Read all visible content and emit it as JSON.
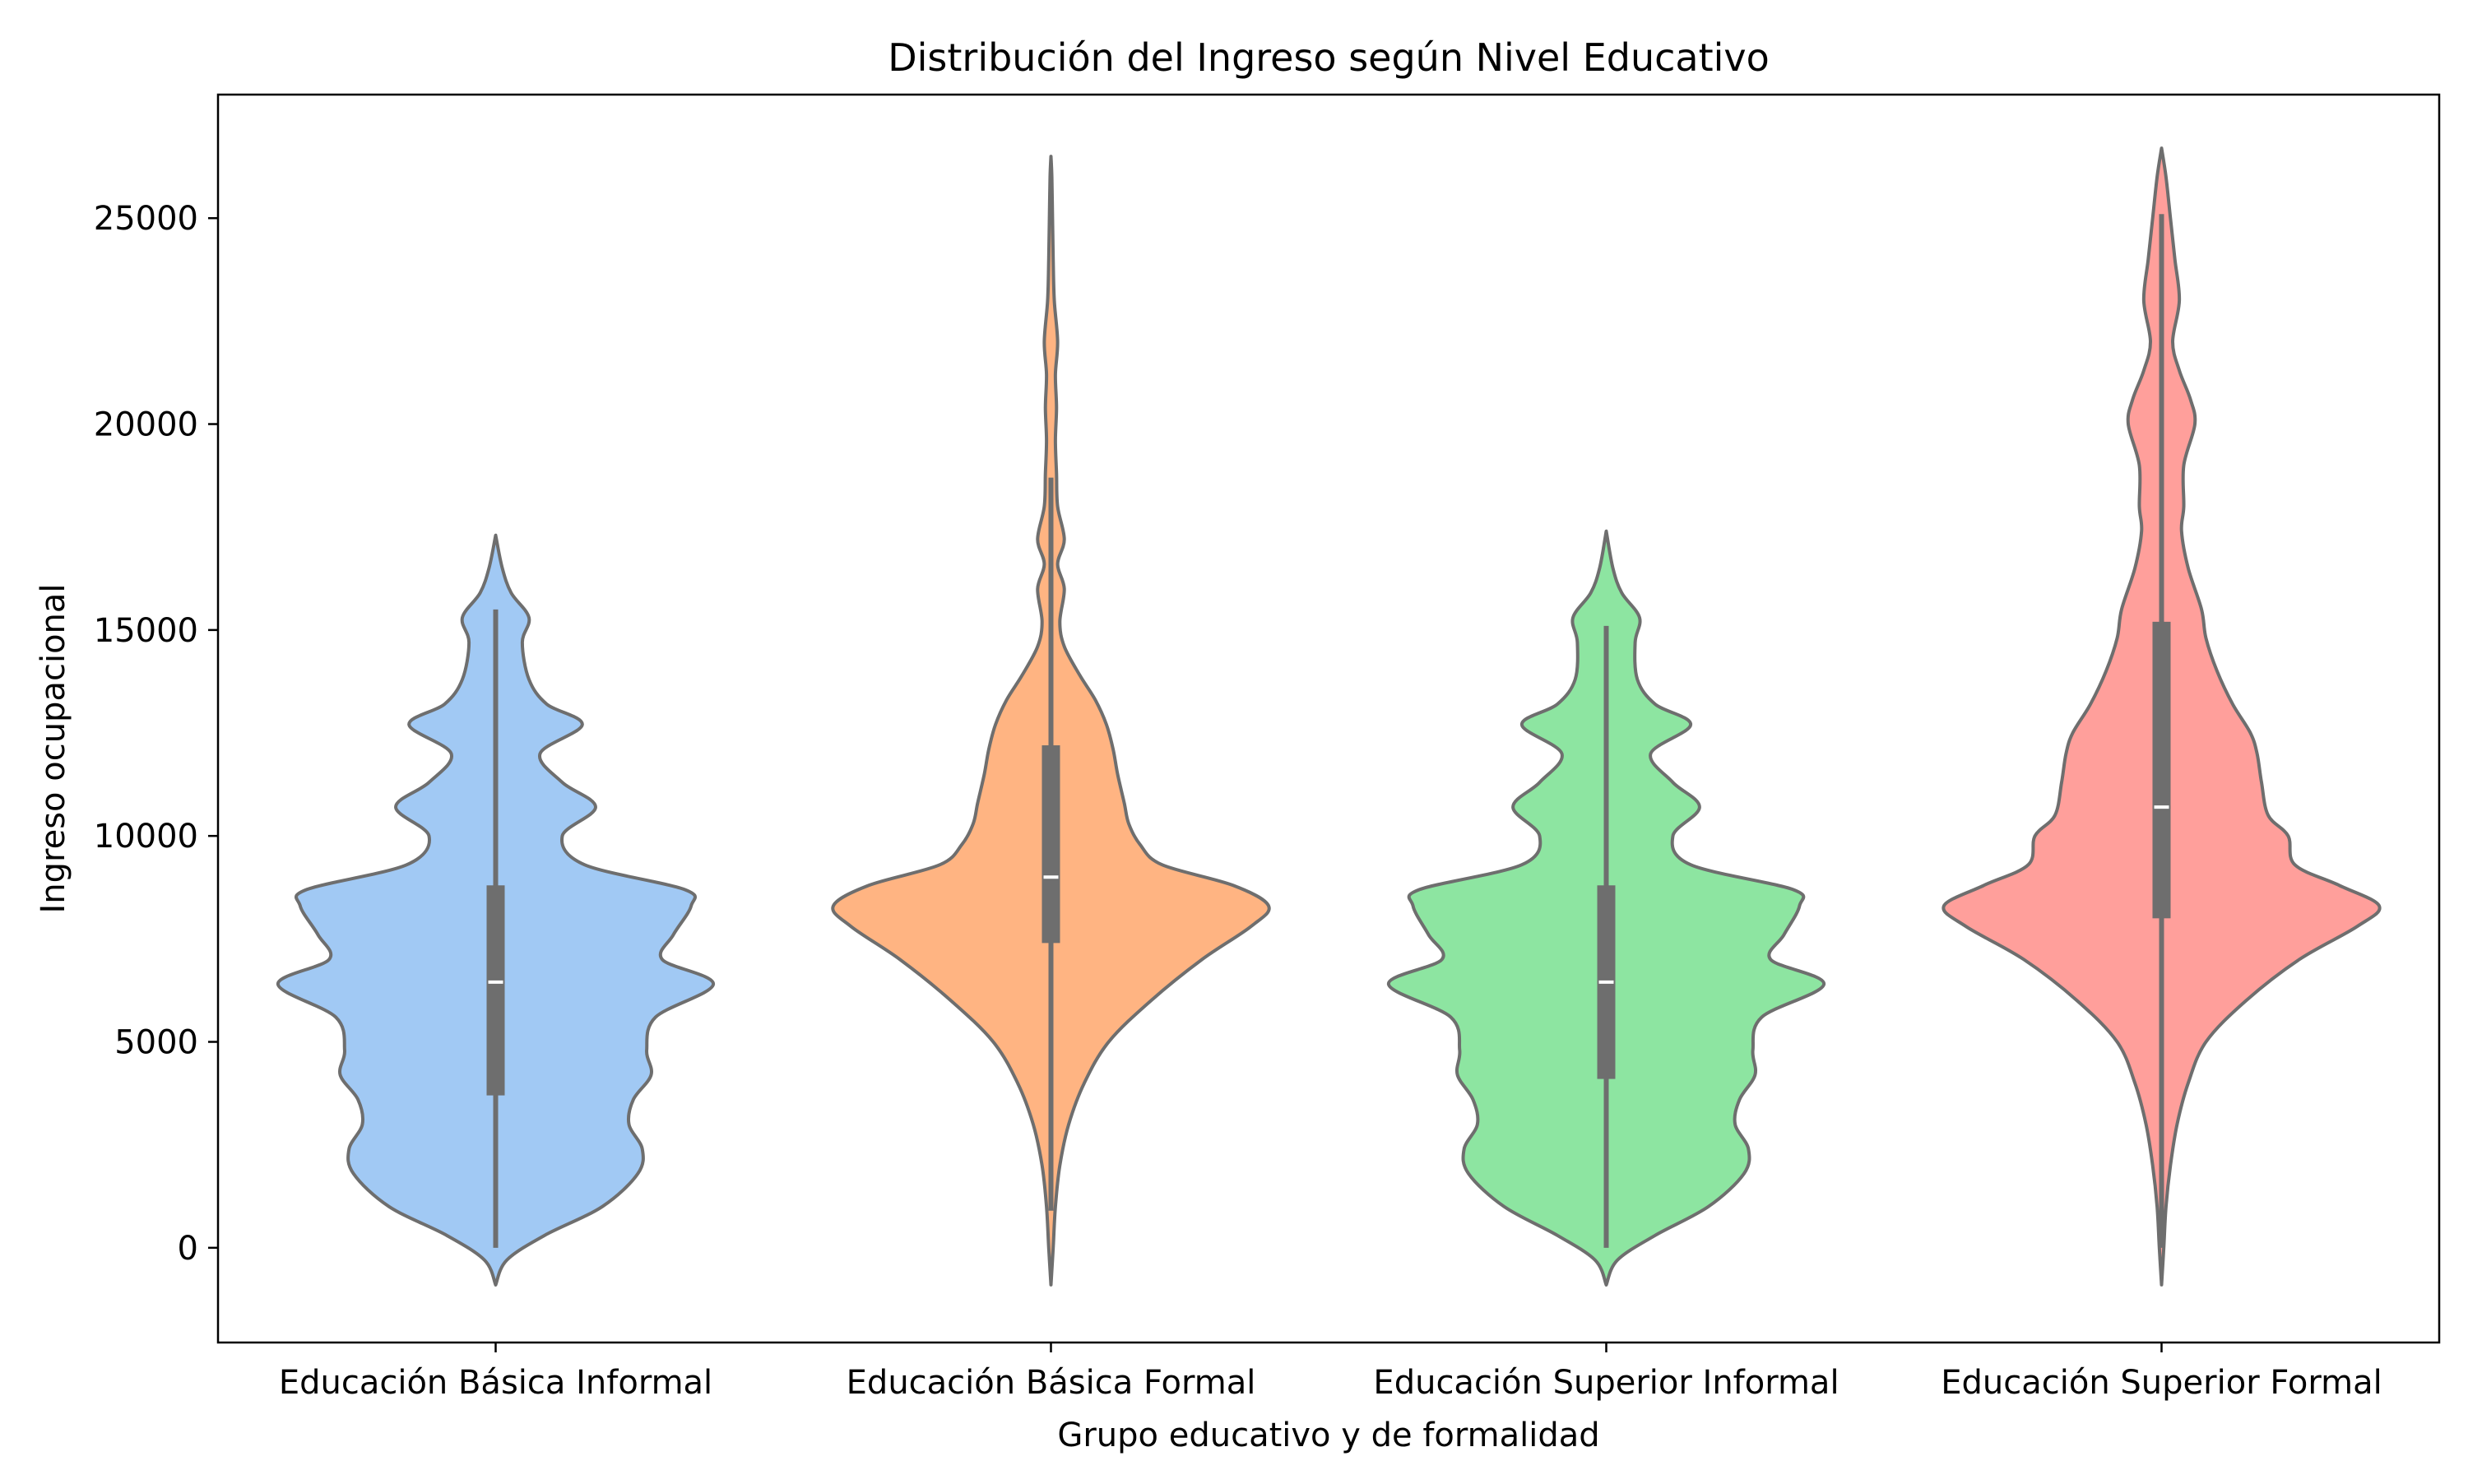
{
  "chart_data": {
    "type": "violin",
    "title": "Distribución del Ingreso según Nivel Educativo",
    "xlabel": "Grupo educativo y de formalidad",
    "ylabel": "Ingreso ocupacional",
    "ylim": [
      -2300,
      28000
    ],
    "yticks": [
      0,
      5000,
      10000,
      15000,
      20000,
      25000
    ],
    "grid": false,
    "categories": [
      "Educación Básica Informal",
      "Educación Básica Formal",
      "Educación Superior Informal",
      "Educación Superior Formal"
    ],
    "colors": [
      "#a1c9f4",
      "#ffb482",
      "#8de5a1",
      "#ff9f9b"
    ],
    "line_color": "#6e6e6e",
    "violins": [
      {
        "category": "Educación Básica Informal",
        "min": 0,
        "q1": 3700,
        "median": 6450,
        "q3": 8800,
        "max": 15500,
        "kde_range": [
          -900,
          17300
        ],
        "density_profile": [
          [
            -900,
            0.0
          ],
          [
            -300,
            0.05
          ],
          [
            300,
            0.22
          ],
          [
            1000,
            0.48
          ],
          [
            1800,
            0.64
          ],
          [
            2400,
            0.66
          ],
          [
            3000,
            0.6
          ],
          [
            3600,
            0.62
          ],
          [
            4200,
            0.7
          ],
          [
            4800,
            0.68
          ],
          [
            5600,
            0.72
          ],
          [
            6400,
            0.98
          ],
          [
            7000,
            0.75
          ],
          [
            7600,
            0.8
          ],
          [
            8300,
            0.88
          ],
          [
            8700,
            0.85
          ],
          [
            9300,
            0.4
          ],
          [
            10000,
            0.3
          ],
          [
            10700,
            0.45
          ],
          [
            11300,
            0.3
          ],
          [
            12000,
            0.2
          ],
          [
            12700,
            0.39
          ],
          [
            13200,
            0.23
          ],
          [
            13800,
            0.15
          ],
          [
            14700,
            0.12
          ],
          [
            15300,
            0.15
          ],
          [
            15900,
            0.07
          ],
          [
            16500,
            0.03
          ],
          [
            17300,
            0.0
          ]
        ]
      },
      {
        "category": "Educación Básica Formal",
        "min": 900,
        "q1": 7400,
        "median": 9000,
        "q3": 12200,
        "max": 18700,
        "kde_range": [
          -900,
          26500
        ],
        "density_profile": [
          [
            -900,
            0.0
          ],
          [
            0,
            0.01
          ],
          [
            1000,
            0.02
          ],
          [
            2000,
            0.04
          ],
          [
            3000,
            0.08
          ],
          [
            4000,
            0.15
          ],
          [
            5000,
            0.26
          ],
          [
            6000,
            0.45
          ],
          [
            7000,
            0.68
          ],
          [
            7800,
            0.9
          ],
          [
            8300,
            0.98
          ],
          [
            8800,
            0.82
          ],
          [
            9300,
            0.5
          ],
          [
            9800,
            0.4
          ],
          [
            10300,
            0.35
          ],
          [
            10800,
            0.33
          ],
          [
            11500,
            0.3
          ],
          [
            12100,
            0.28
          ],
          [
            12700,
            0.25
          ],
          [
            13300,
            0.2
          ],
          [
            13900,
            0.13
          ],
          [
            14600,
            0.06
          ],
          [
            15200,
            0.04
          ],
          [
            16000,
            0.06
          ],
          [
            16600,
            0.03
          ],
          [
            17200,
            0.06
          ],
          [
            18000,
            0.03
          ],
          [
            18800,
            0.025
          ],
          [
            19600,
            0.02
          ],
          [
            20400,
            0.025
          ],
          [
            21200,
            0.02
          ],
          [
            22000,
            0.03
          ],
          [
            23000,
            0.015
          ],
          [
            24000,
            0.01
          ],
          [
            25000,
            0.007
          ],
          [
            26000,
            0.004
          ],
          [
            26500,
            0.0
          ]
        ]
      },
      {
        "category": "Educación Superior Informal",
        "min": 0,
        "q1": 4100,
        "median": 6450,
        "q3": 8800,
        "max": 15100,
        "kde_range": [
          -900,
          17400
        ],
        "density_profile": [
          [
            -900,
            0.0
          ],
          [
            -300,
            0.05
          ],
          [
            300,
            0.22
          ],
          [
            1000,
            0.46
          ],
          [
            1800,
            0.62
          ],
          [
            2400,
            0.64
          ],
          [
            3000,
            0.58
          ],
          [
            3600,
            0.6
          ],
          [
            4200,
            0.67
          ],
          [
            4800,
            0.66
          ],
          [
            5600,
            0.7
          ],
          [
            6400,
            0.98
          ],
          [
            7000,
            0.74
          ],
          [
            7600,
            0.8
          ],
          [
            8300,
            0.87
          ],
          [
            8700,
            0.84
          ],
          [
            9300,
            0.38
          ],
          [
            10000,
            0.3
          ],
          [
            10700,
            0.42
          ],
          [
            11300,
            0.3
          ],
          [
            12000,
            0.2
          ],
          [
            12700,
            0.38
          ],
          [
            13200,
            0.22
          ],
          [
            13800,
            0.14
          ],
          [
            14700,
            0.13
          ],
          [
            15300,
            0.15
          ],
          [
            15900,
            0.07
          ],
          [
            16500,
            0.03
          ],
          [
            17400,
            0.0
          ]
        ]
      },
      {
        "category": "Educación Superior Formal",
        "min": 0,
        "q1": 8000,
        "median": 10700,
        "q3": 15200,
        "max": 25100,
        "kde_range": [
          -900,
          26700
        ],
        "density_profile": [
          [
            -900,
            0.0
          ],
          [
            0,
            0.01
          ],
          [
            1000,
            0.02
          ],
          [
            2000,
            0.04
          ],
          [
            3000,
            0.07
          ],
          [
            4000,
            0.12
          ],
          [
            5000,
            0.2
          ],
          [
            6000,
            0.38
          ],
          [
            7000,
            0.62
          ],
          [
            7800,
            0.88
          ],
          [
            8300,
            0.98
          ],
          [
            8800,
            0.8
          ],
          [
            9300,
            0.6
          ],
          [
            10000,
            0.57
          ],
          [
            10500,
            0.48
          ],
          [
            11300,
            0.45
          ],
          [
            12000,
            0.43
          ],
          [
            12500,
            0.4
          ],
          [
            13200,
            0.32
          ],
          [
            14000,
            0.25
          ],
          [
            14800,
            0.2
          ],
          [
            15500,
            0.18
          ],
          [
            16500,
            0.12
          ],
          [
            17400,
            0.09
          ],
          [
            18000,
            0.1
          ],
          [
            19000,
            0.1
          ],
          [
            20000,
            0.15
          ],
          [
            20600,
            0.13
          ],
          [
            21300,
            0.08
          ],
          [
            22000,
            0.05
          ],
          [
            23000,
            0.08
          ],
          [
            24000,
            0.06
          ],
          [
            25000,
            0.04
          ],
          [
            26000,
            0.02
          ],
          [
            26700,
            0.0
          ]
        ]
      }
    ]
  }
}
